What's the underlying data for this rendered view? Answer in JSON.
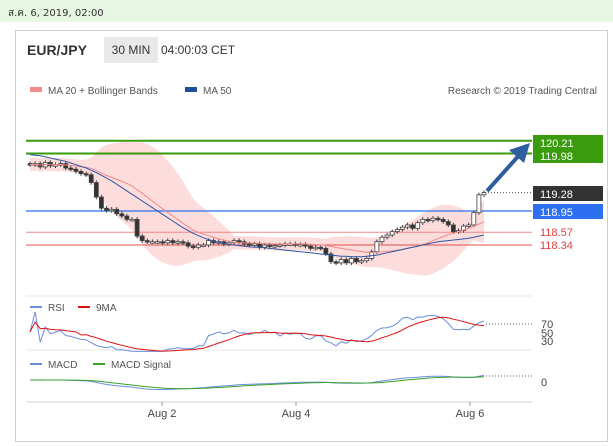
{
  "datetime": "ส.ค. 6, 2019, 02:00",
  "header": {
    "symbol": "EUR/JPY",
    "interval": "30 MIN",
    "time": "04:00:03 CET"
  },
  "main_legend": {
    "bands": "MA 20 + Bollinger Bands",
    "ma50": "MA 50",
    "credit": "Research © 2019 Trading Central"
  },
  "rsi_legend": {
    "rsi": "RSI",
    "ma": "9MA"
  },
  "macd_legend": {
    "macd": "MACD",
    "signal": "MACD Signal"
  },
  "colors": {
    "green": "#3a9b0e",
    "blue": "#2c6ff0",
    "red": "#e04040",
    "dark": "#333333",
    "band": "#fcd0d0"
  },
  "chart_data": {
    "type": "candlestick",
    "x_tick_labels": [
      "Aug 2",
      "Aug 4",
      "Aug 6"
    ],
    "price_labels": [
      "120.21",
      "119.98",
      "119.28",
      "118.95",
      "118.57",
      "118.34"
    ],
    "levels": {
      "resistance_2": 120.21,
      "resistance_1": 119.98,
      "last": 119.28,
      "pivot": 118.95,
      "support_1": 118.57,
      "support_2": 118.34
    },
    "close": [
      119.78,
      119.8,
      119.74,
      119.82,
      119.76,
      119.78,
      119.8,
      119.72,
      119.7,
      119.66,
      119.62,
      119.6,
      119.46,
      119.2,
      119.0,
      118.96,
      118.98,
      118.9,
      118.86,
      118.8,
      118.8,
      118.5,
      118.42,
      118.4,
      118.4,
      118.4,
      118.38,
      118.42,
      118.38,
      118.4,
      118.38,
      118.32,
      118.3,
      118.34,
      118.34,
      118.42,
      118.38,
      118.4,
      118.36,
      118.38,
      118.42,
      118.4,
      118.36,
      118.34,
      118.36,
      118.3,
      118.34,
      118.32,
      118.33,
      118.34,
      118.36,
      118.36,
      118.34,
      118.35,
      118.32,
      118.28,
      118.3,
      118.28,
      118.18,
      118.04,
      118.02,
      118.08,
      118.02,
      118.1,
      118.04,
      118.06,
      118.1,
      118.22,
      118.4,
      118.48,
      118.52,
      118.58,
      118.62,
      118.66,
      118.7,
      118.64,
      118.74,
      118.8,
      118.78,
      118.82,
      118.8,
      118.76,
      118.7,
      118.58,
      118.6,
      118.68,
      118.7,
      118.92,
      119.24,
      119.28
    ],
    "ma50": [
      119.96,
      119.95,
      119.94,
      119.92,
      119.9,
      119.88,
      119.86,
      119.84,
      119.81,
      119.78,
      119.75,
      119.72,
      119.68,
      119.64,
      119.59,
      119.54,
      119.49,
      119.43,
      119.37,
      119.31,
      119.25,
      119.19,
      119.13,
      119.07,
      119.01,
      118.95,
      118.89,
      118.83,
      118.77,
      118.71,
      118.65,
      118.6,
      118.55,
      118.51,
      118.47,
      118.44,
      118.41,
      118.39,
      118.37,
      118.35,
      118.34,
      118.33,
      118.32,
      118.31,
      118.3,
      118.3,
      118.29,
      118.28,
      118.27,
      118.26,
      118.25,
      118.24,
      118.23,
      118.22,
      118.21,
      118.2,
      118.19,
      118.18,
      118.17,
      118.16,
      118.15,
      118.14,
      118.14,
      118.13,
      118.13,
      118.13,
      118.14,
      118.15,
      118.16,
      118.18,
      118.2,
      118.22,
      118.24,
      118.26,
      118.28,
      118.3,
      118.32,
      118.34,
      118.36,
      118.38,
      118.4,
      118.41,
      118.42,
      118.43,
      118.44,
      118.45,
      118.46,
      118.48,
      118.5,
      118.52
    ],
    "rsi_labels": [
      "70",
      "50",
      "30"
    ],
    "rsi_value": 70,
    "macd_zero_label": "0"
  }
}
